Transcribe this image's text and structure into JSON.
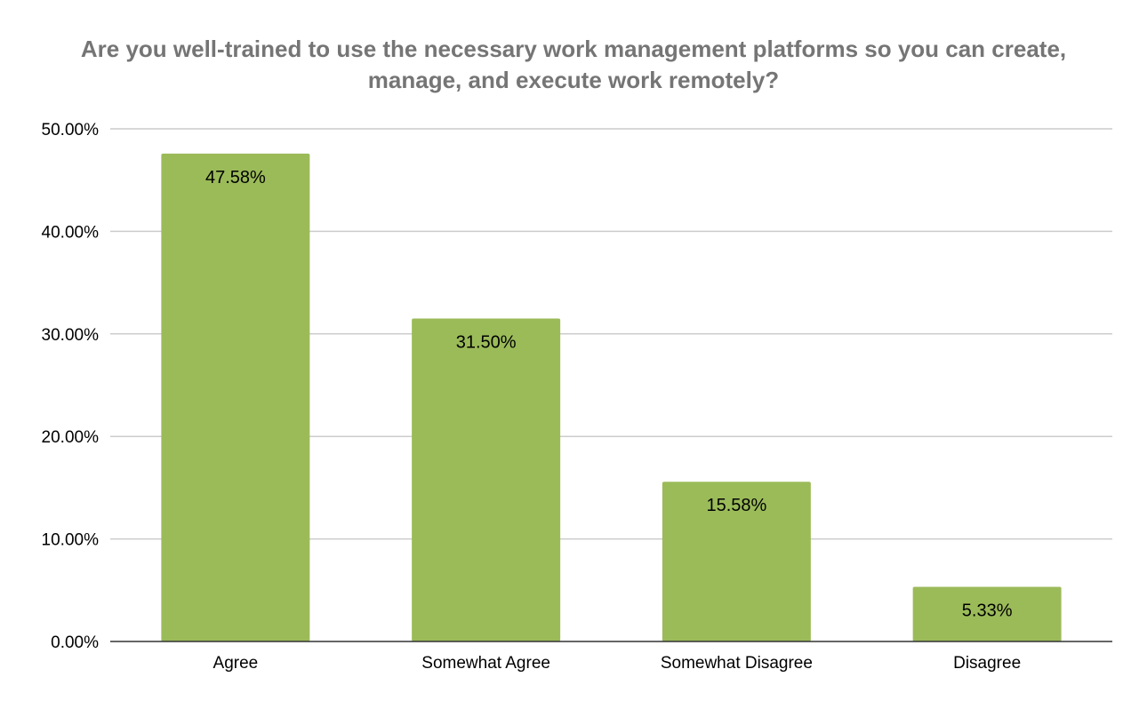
{
  "chart_data": {
    "type": "bar",
    "title_lines": [
      "Are you well-trained to use the necessary work management platforms so you can create,",
      "manage, and execute work remotely?"
    ],
    "categories": [
      "Agree",
      "Somewhat Agree",
      "Somewhat Disagree",
      "Disagree"
    ],
    "values": [
      47.58,
      31.5,
      15.58,
      5.33
    ],
    "value_labels": [
      "47.58%",
      "31.50%",
      "15.58%",
      "5.33%"
    ],
    "ylim": [
      0,
      50
    ],
    "yticks": [
      0,
      10,
      20,
      30,
      40,
      50
    ],
    "ytick_labels": [
      "0.00%",
      "10.00%",
      "20.00%",
      "30.00%",
      "40.00%",
      "50.00%"
    ],
    "xlabel": "",
    "ylabel": "",
    "grid": true,
    "legend": "none",
    "bar_color": "#9bbb59",
    "grid_color": "#cccccc",
    "axis_color": "#333333",
    "title_color": "#757575"
  }
}
